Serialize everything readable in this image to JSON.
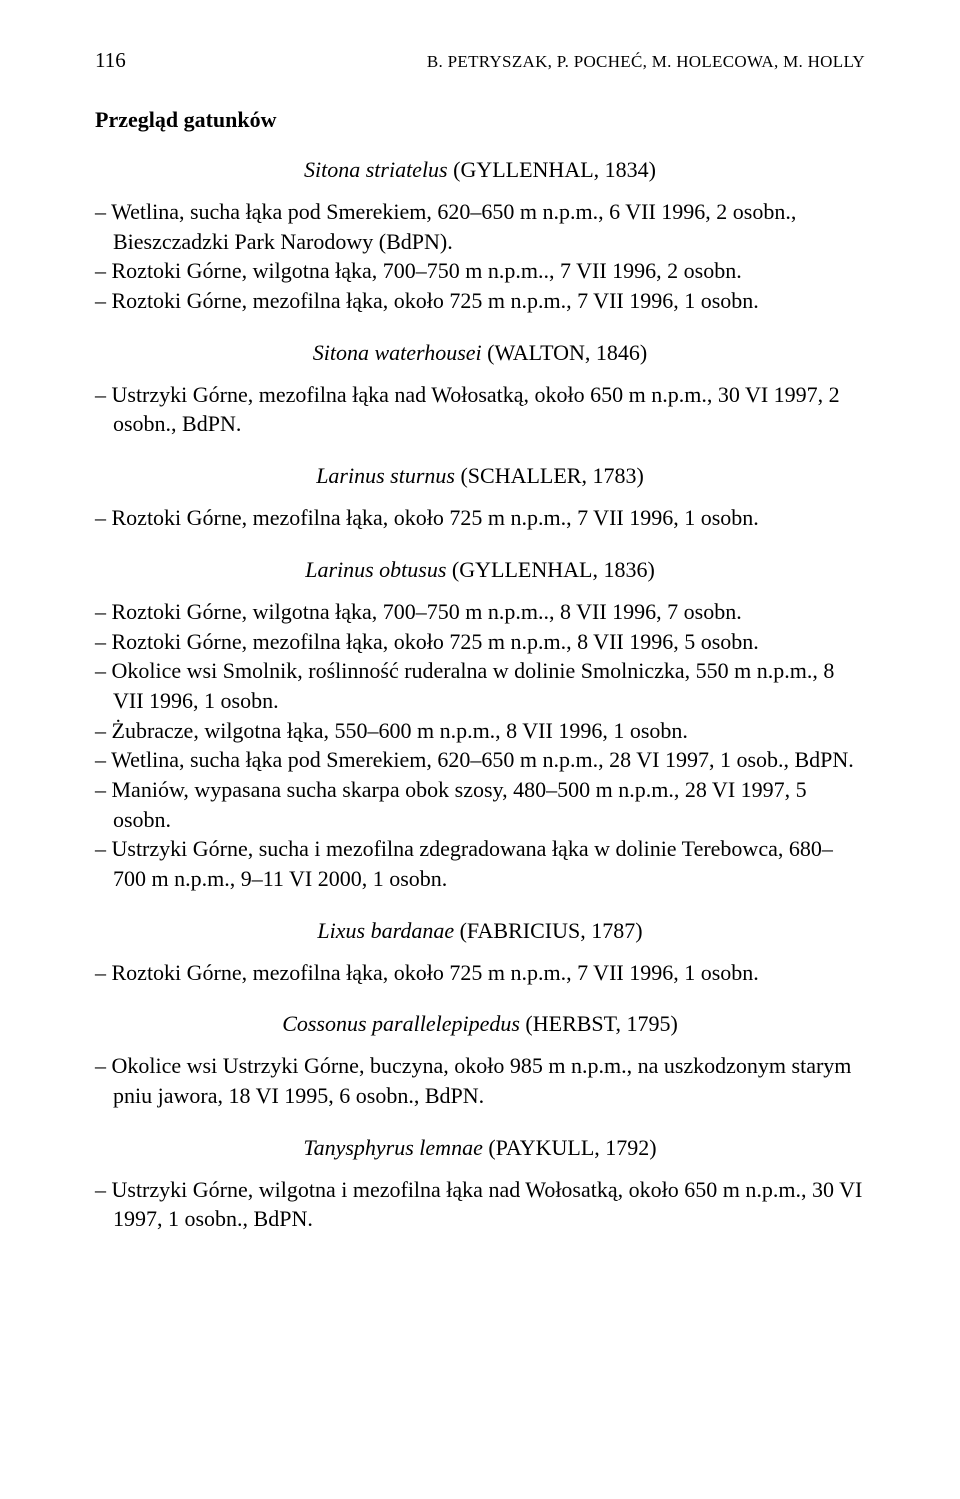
{
  "header": {
    "page_number": "116",
    "running_head": "B. PETRYSZAK, P. POCHEĆ, M. HOLECOWA, M. HOLLY"
  },
  "section_heading": "Przegląd gatunków",
  "species": [
    {
      "name_italic": "Sitona striatelus",
      "author": "(GYLLENHAL, 1834)",
      "entries": [
        "– Wetlina, sucha łąka pod Smerekiem, 620–650 m n.p.m., 6 VII 1996, 2 osobn., Bieszczadzki Park Narodowy (BdPN).",
        "– Roztoki Górne, wilgotna łąka, 700–750 m n.p.m.., 7 VII 1996, 2 osobn.",
        "– Roztoki Górne, mezofilna łąka, około 725 m n.p.m., 7 VII 1996, 1 osobn."
      ]
    },
    {
      "name_italic": "Sitona waterhousei",
      "author": "(WALTON, 1846)",
      "entries": [
        "– Ustrzyki Górne, mezofilna łąka nad Wołosatką, około 650 m n.p.m., 30 VI 1997, 2 osobn., BdPN."
      ]
    },
    {
      "name_italic": "Larinus sturnus",
      "author": "(SCHALLER, 1783)",
      "entries": [
        "– Roztoki Górne, mezofilna łąka, około 725 m n.p.m., 7 VII 1996, 1 osobn."
      ]
    },
    {
      "name_italic": "Larinus obtusus",
      "author": "(GYLLENHAL, 1836)",
      "entries": [
        "– Roztoki Górne, wilgotna łąka, 700–750 m n.p.m.., 8 VII 1996, 7 osobn.",
        "– Roztoki Górne, mezofilna łąka, około 725 m n.p.m., 8 VII 1996, 5 osobn.",
        "– Okolice wsi Smolnik, roślinność ruderalna w dolinie Smolniczka, 550 m n.p.m., 8 VII 1996, 1 osobn.",
        "– Żubracze, wilgotna łąka, 550–600 m n.p.m., 8 VII 1996, 1 osobn.",
        "– Wetlina, sucha łąka pod Smerekiem, 620–650 m n.p.m., 28 VI 1997, 1 osob., BdPN.",
        "– Maniów, wypasana sucha skarpa obok szosy, 480–500 m n.p.m., 28 VI 1997, 5 osobn.",
        "– Ustrzyki Górne, sucha i mezofilna zdegradowana łąka w dolinie Terebowca, 680–700 m n.p.m., 9–11 VI 2000, 1 osobn."
      ]
    },
    {
      "name_italic": "Lixus bardanae",
      "author": "(FABRICIUS, 1787)",
      "entries": [
        "– Roztoki Górne, mezofilna łąka, około 725 m n.p.m., 7 VII 1996, 1 osobn."
      ]
    },
    {
      "name_italic": "Cossonus parallelepipedus",
      "author": "(HERBST, 1795)",
      "entries": [
        "– Okolice wsi Ustrzyki Górne, buczyna, około 985 m n.p.m., na uszkodzonym starym pniu jawora, 18 VI 1995, 6 osobn., BdPN."
      ]
    },
    {
      "name_italic": "Tanysphyrus lemnae",
      "author": "(PAYKULL, 1792)",
      "entries": [
        "– Ustrzyki Górne, wilgotna i mezofilna łąka nad Wołosatką, około 650 m n.p.m., 30 VI 1997, 1 osobn., BdPN."
      ]
    }
  ]
}
